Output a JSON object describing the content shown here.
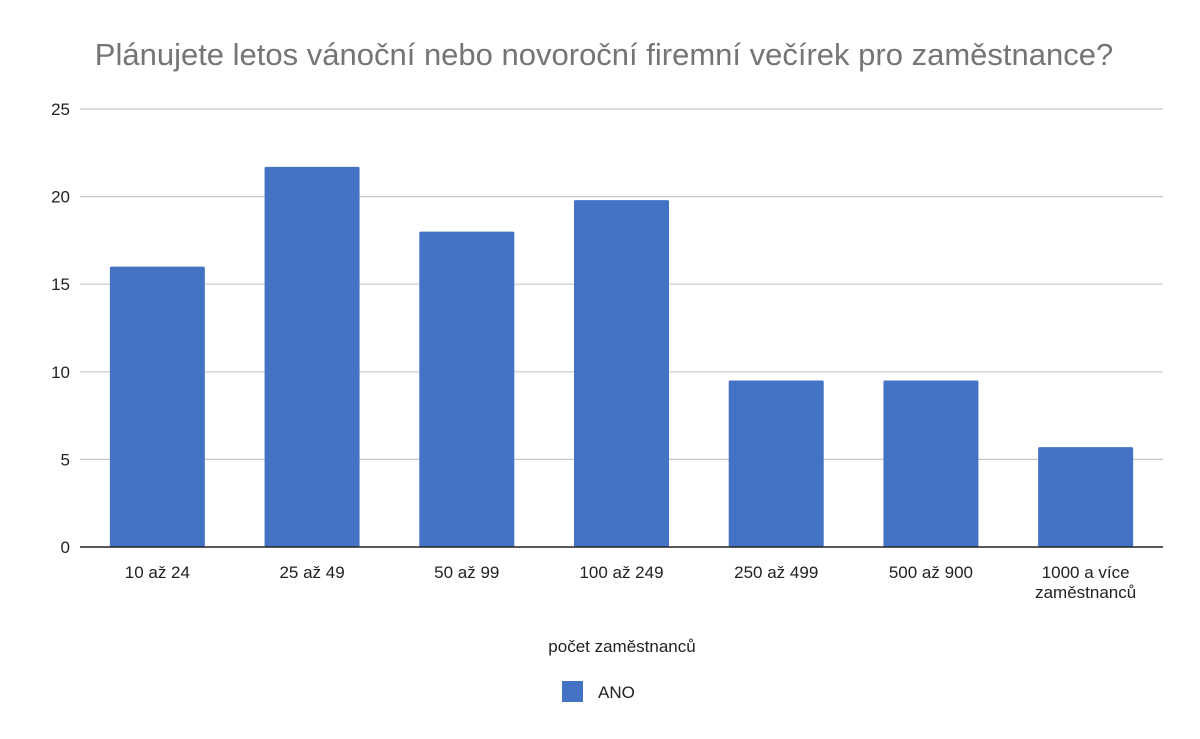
{
  "chart_data": {
    "type": "bar",
    "title": "Plánujete letos vánoční nebo novoroční firemní večírek pro zaměstnance?",
    "xlabel": "počet zaměstnanců",
    "ylabel": "",
    "categories": [
      "10 až 24",
      "25 až 49",
      "50 až 99",
      "100 až 249",
      "250 až 499",
      "500 až 900",
      "1000 a více zaměstnanců"
    ],
    "category_lines": [
      [
        "10 až 24"
      ],
      [
        "25 až 49"
      ],
      [
        "50 až 99"
      ],
      [
        "100 až 249"
      ],
      [
        "250 až 499"
      ],
      [
        "500 až 900"
      ],
      [
        "1000 a více",
        "zaměstnanců"
      ]
    ],
    "series": [
      {
        "name": "ANO",
        "color": "#4472c4",
        "values": [
          16.0,
          21.7,
          18.0,
          19.8,
          9.5,
          9.5,
          5.7
        ]
      }
    ],
    "ylim": [
      0,
      25
    ],
    "yticks": [
      0,
      5,
      10,
      15,
      20,
      25
    ],
    "grid": true,
    "legend_position": "bottom"
  }
}
